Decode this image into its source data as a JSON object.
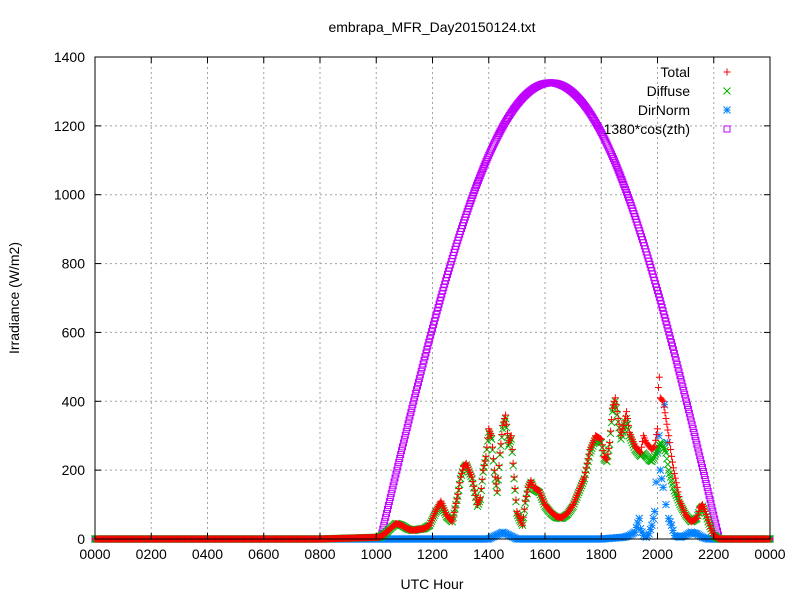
{
  "chart_data": {
    "type": "scatter",
    "title": "embrapa_MFR_Day20150124.txt",
    "xlabel": "UTC Hour",
    "ylabel": "Irradiance (W/m2)",
    "xlim": [
      0,
      24
    ],
    "ylim": [
      0,
      1400
    ],
    "x_ticks": [
      0,
      2,
      4,
      6,
      8,
      10,
      12,
      14,
      16,
      18,
      20,
      22,
      24
    ],
    "x_tick_labels": [
      "0000",
      "0200",
      "0400",
      "0600",
      "0800",
      "1000",
      "1200",
      "1400",
      "1600",
      "1800",
      "2000",
      "2200",
      "0000"
    ],
    "y_ticks": [
      0,
      200,
      400,
      600,
      800,
      1000,
      1200,
      1400
    ],
    "y_tick_labels": [
      "0",
      "200",
      "400",
      "600",
      "800",
      "1000",
      "1200",
      "1400"
    ],
    "grid": true,
    "legend_position": "top-right",
    "series": [
      {
        "name": "Total",
        "marker": "plus",
        "color": "#ff0000",
        "x": [
          0,
          2,
          4,
          6,
          8,
          10.1,
          10.3,
          10.5,
          10.7,
          10.9,
          11.1,
          11.3,
          11.5,
          11.7,
          11.9,
          12.1,
          12.3,
          12.5,
          12.7,
          12.9,
          13.0,
          13.1,
          13.2,
          13.4,
          13.5,
          13.6,
          13.7,
          13.8,
          13.9,
          14.0,
          14.1,
          14.2,
          14.3,
          14.4,
          14.5,
          14.6,
          14.7,
          14.8,
          14.9,
          15.0,
          15.1,
          15.2,
          15.3,
          15.4,
          15.5,
          15.6,
          15.8,
          16.0,
          16.2,
          16.4,
          16.6,
          16.8,
          17.0,
          17.2,
          17.4,
          17.6,
          17.8,
          18.0,
          18.1,
          18.2,
          18.3,
          18.4,
          18.5,
          18.6,
          18.7,
          18.8,
          18.9,
          19.0,
          19.2,
          19.4,
          19.5,
          19.6,
          19.7,
          19.8,
          19.9,
          20.0,
          20.05,
          20.1,
          20.2,
          20.3,
          20.4,
          20.5,
          20.6,
          20.8,
          21.0,
          21.2,
          21.4,
          21.5,
          21.6,
          21.7,
          21.8,
          21.9,
          22.0,
          22.2,
          22.4,
          23,
          24
        ],
        "y": [
          0,
          0,
          0,
          0,
          0,
          5,
          15,
          30,
          45,
          40,
          30,
          25,
          28,
          30,
          40,
          80,
          110,
          70,
          50,
          130,
          180,
          210,
          220,
          180,
          140,
          100,
          120,
          200,
          240,
          320,
          300,
          200,
          140,
          250,
          330,
          360,
          280,
          300,
          180,
          80,
          60,
          40,
          110,
          150,
          170,
          150,
          140,
          100,
          80,
          65,
          62,
          75,
          100,
          140,
          180,
          260,
          300,
          290,
          240,
          230,
          280,
          380,
          410,
          350,
          300,
          330,
          370,
          310,
          270,
          250,
          300,
          280,
          270,
          260,
          270,
          320,
          500,
          410,
          400,
          350,
          300,
          240,
          190,
          110,
          70,
          50,
          60,
          90,
          100,
          80,
          55,
          30,
          10,
          0,
          0,
          0,
          0
        ]
      },
      {
        "name": "Diffuse",
        "marker": "cross",
        "color": "#00b000",
        "x": [
          0,
          2,
          4,
          6,
          8,
          10.1,
          10.3,
          10.5,
          10.7,
          10.9,
          11.1,
          11.3,
          11.5,
          11.7,
          11.9,
          12.1,
          12.3,
          12.5,
          12.7,
          12.9,
          13.0,
          13.1,
          13.2,
          13.4,
          13.5,
          13.6,
          13.7,
          13.8,
          13.9,
          14.0,
          14.1,
          14.2,
          14.3,
          14.4,
          14.5,
          14.6,
          14.7,
          14.8,
          14.9,
          15.0,
          15.1,
          15.2,
          15.3,
          15.4,
          15.5,
          15.6,
          15.8,
          16.0,
          16.2,
          16.4,
          16.6,
          16.8,
          17.0,
          17.2,
          17.4,
          17.6,
          17.8,
          18.0,
          18.1,
          18.2,
          18.3,
          18.4,
          18.5,
          18.6,
          18.7,
          18.8,
          18.9,
          19.0,
          19.2,
          19.4,
          19.5,
          19.6,
          19.7,
          19.8,
          19.9,
          20.0,
          20.1,
          20.2,
          20.3,
          20.4,
          20.5,
          20.6,
          20.8,
          21.0,
          21.2,
          21.4,
          21.5,
          21.6,
          21.7,
          21.8,
          21.9,
          22.0,
          22.2,
          22.4,
          23,
          24
        ],
        "y": [
          0,
          0,
          0,
          0,
          0,
          5,
          15,
          30,
          45,
          40,
          30,
          25,
          28,
          30,
          40,
          75,
          100,
          65,
          50,
          125,
          175,
          205,
          215,
          175,
          135,
          95,
          115,
          195,
          235,
          310,
          290,
          195,
          135,
          245,
          320,
          350,
          270,
          290,
          175,
          75,
          55,
          40,
          105,
          145,
          165,
          145,
          135,
          95,
          75,
          62,
          60,
          72,
          95,
          135,
          175,
          250,
          290,
          280,
          235,
          225,
          275,
          370,
          400,
          340,
          290,
          320,
          350,
          300,
          260,
          240,
          250,
          240,
          230,
          225,
          240,
          260,
          280,
          270,
          250,
          200,
          170,
          140,
          100,
          70,
          50,
          60,
          85,
          95,
          75,
          50,
          30,
          10,
          0,
          0,
          0,
          0
        ]
      },
      {
        "name": "DirNorm",
        "marker": "star",
        "color": "#0080ff",
        "x": [
          0,
          2,
          4,
          6,
          8,
          10,
          11,
          12,
          13,
          14,
          14.5,
          15,
          16,
          17,
          18,
          18.8,
          19.0,
          19.2,
          19.35,
          19.4,
          19.5,
          19.6,
          19.7,
          19.8,
          19.9,
          20.0,
          20.05,
          20.1,
          20.2,
          20.25,
          20.3,
          20.35,
          20.4,
          20.5,
          20.6,
          20.8,
          21.0,
          21.2,
          21.4,
          21.6,
          21.8,
          22.0,
          22.4,
          23,
          24
        ],
        "y": [
          0,
          0,
          0,
          0,
          0,
          0,
          0,
          0,
          0,
          0,
          20,
          0,
          0,
          0,
          0,
          5,
          10,
          20,
          60,
          30,
          10,
          5,
          15,
          40,
          80,
          250,
          300,
          200,
          150,
          390,
          100,
          280,
          60,
          40,
          10,
          5,
          10,
          20,
          15,
          5,
          0,
          0,
          0,
          0,
          0
        ]
      },
      {
        "name": "1380*cos(zth)",
        "marker": "square",
        "color": "#c000ff",
        "sunrise_hour": 10.15,
        "sunset_hour": 22.2,
        "peak_hour": 16.2,
        "peak_value": 1325
      }
    ]
  }
}
